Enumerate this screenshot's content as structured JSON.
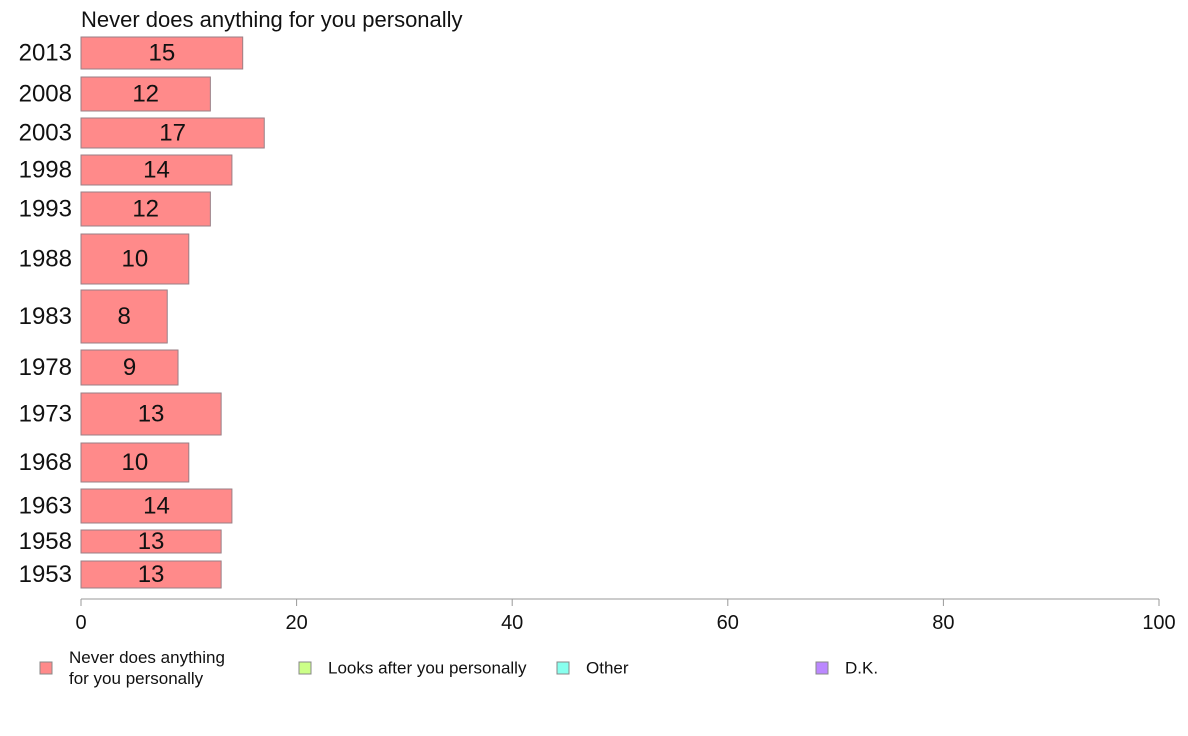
{
  "chart_data": {
    "type": "bar",
    "orientation": "horizontal",
    "title": "Never does anything for you personally",
    "categories": [
      "2013",
      "2008",
      "2003",
      "1998",
      "1993",
      "1988",
      "1983",
      "1978",
      "1973",
      "1968",
      "1963",
      "1958",
      "1953"
    ],
    "series": [
      {
        "name": "Never does anything for you personally",
        "color": "#ff8a8a",
        "values": [
          15,
          12,
          17,
          14,
          12,
          10,
          8,
          9,
          13,
          10,
          14,
          13,
          13
        ],
        "data_labels": [
          "15",
          "12",
          "17",
          "14",
          "12",
          "10",
          "8",
          "9",
          "13",
          "10",
          "14",
          "13",
          "13"
        ]
      }
    ],
    "xlim": [
      0,
      100
    ],
    "x_ticks": [
      "0",
      "20",
      "40",
      "60",
      "80",
      "100"
    ],
    "grid": false,
    "legend_position": "bottom",
    "legend": [
      {
        "lines": [
          "Never does anything",
          "for you personally"
        ],
        "color": "#ff8a8a"
      },
      {
        "lines": [
          "Looks after you personally"
        ],
        "color": "#ccff88"
      },
      {
        "lines": [
          "Other"
        ],
        "color": "#88ffee"
      },
      {
        "lines": [
          "D.K."
        ],
        "color": "#bb88ff"
      }
    ]
  }
}
